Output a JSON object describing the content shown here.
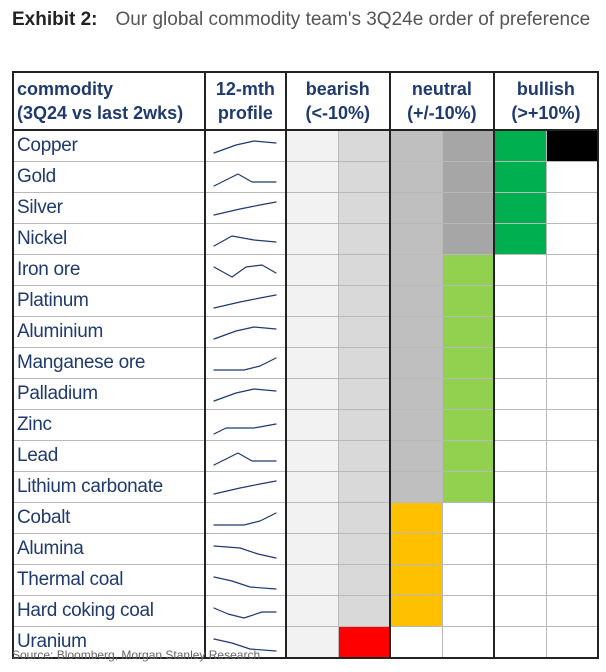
{
  "title": {
    "label": "Exhibit 2:",
    "text": "Our global commodity team's 3Q24e order of preference"
  },
  "headers": {
    "commodity_line1": "commodity",
    "commodity_line2": "(3Q24 vs last 2wks)",
    "profile_line1": "12-mth",
    "profile_line2": "profile",
    "bearish_line1": "bearish",
    "bearish_line2": "(<-10%)",
    "neutral_line1": "neutral",
    "neutral_line2": "(+/-10%)",
    "bullish_line1": "bullish",
    "bullish_line2": "(>+10%)"
  },
  "colors": {
    "c0": "#f2f2f2",
    "c1": "#d9d9d9",
    "c2": "#bfbfbf",
    "c3": "#a6a6a6",
    "dark_green": "#00b050",
    "light_green": "#92d050",
    "orange": "#ffc000",
    "red": "#ff0000",
    "black": "#000000",
    "white": "#ffffff"
  },
  "rows": [
    {
      "name": "Copper",
      "profile": "rise-flat",
      "cells": [
        "c0",
        "c1",
        "c2",
        "c3",
        "dark_green",
        "black"
      ]
    },
    {
      "name": "Gold",
      "profile": "peak",
      "cells": [
        "c0",
        "c1",
        "c2",
        "c3",
        "dark_green",
        "white"
      ]
    },
    {
      "name": "Silver",
      "profile": "rise",
      "cells": [
        "c0",
        "c1",
        "c2",
        "c3",
        "dark_green",
        "white"
      ]
    },
    {
      "name": "Nickel",
      "profile": "hump",
      "cells": [
        "c0",
        "c1",
        "c2",
        "c3",
        "dark_green",
        "white"
      ]
    },
    {
      "name": "Iron ore",
      "profile": "w",
      "cells": [
        "c0",
        "c1",
        "c2",
        "light_green",
        "white",
        "white"
      ]
    },
    {
      "name": "Platinum",
      "profile": "rise",
      "cells": [
        "c0",
        "c1",
        "c2",
        "light_green",
        "white",
        "white"
      ]
    },
    {
      "name": "Aluminium",
      "profile": "rise-flat",
      "cells": [
        "c0",
        "c1",
        "c2",
        "light_green",
        "white",
        "white"
      ]
    },
    {
      "name": "Manganese ore",
      "profile": "flat-rise",
      "cells": [
        "c0",
        "c1",
        "c2",
        "light_green",
        "white",
        "white"
      ]
    },
    {
      "name": "Palladium",
      "profile": "rise-flat",
      "cells": [
        "c0",
        "c1",
        "c2",
        "light_green",
        "white",
        "white"
      ]
    },
    {
      "name": "Zinc",
      "profile": "step",
      "cells": [
        "c0",
        "c1",
        "c2",
        "light_green",
        "white",
        "white"
      ]
    },
    {
      "name": "Lead",
      "profile": "peak",
      "cells": [
        "c0",
        "c1",
        "c2",
        "light_green",
        "white",
        "white"
      ]
    },
    {
      "name": "Lithium carbonate",
      "profile": "rise",
      "cells": [
        "c0",
        "c1",
        "c2",
        "light_green",
        "white",
        "white"
      ]
    },
    {
      "name": "Cobalt",
      "profile": "flat-rise",
      "cells": [
        "c0",
        "c1",
        "orange",
        "white",
        "white",
        "white"
      ]
    },
    {
      "name": "Alumina",
      "profile": "fall",
      "cells": [
        "c0",
        "c1",
        "orange",
        "white",
        "white",
        "white"
      ]
    },
    {
      "name": "Thermal coal",
      "profile": "fall-flat",
      "cells": [
        "c0",
        "c1",
        "orange",
        "white",
        "white",
        "white"
      ]
    },
    {
      "name": "Hard coking coal",
      "profile": "fall-rise",
      "cells": [
        "c0",
        "c1",
        "orange",
        "white",
        "white",
        "white"
      ]
    },
    {
      "name": "Uranium",
      "profile": "fall-flat",
      "cells": [
        "c0",
        "red",
        "white",
        "white",
        "white",
        "white"
      ]
    }
  ],
  "source": "Source: Bloomberg, Morgan Stanley Research"
}
